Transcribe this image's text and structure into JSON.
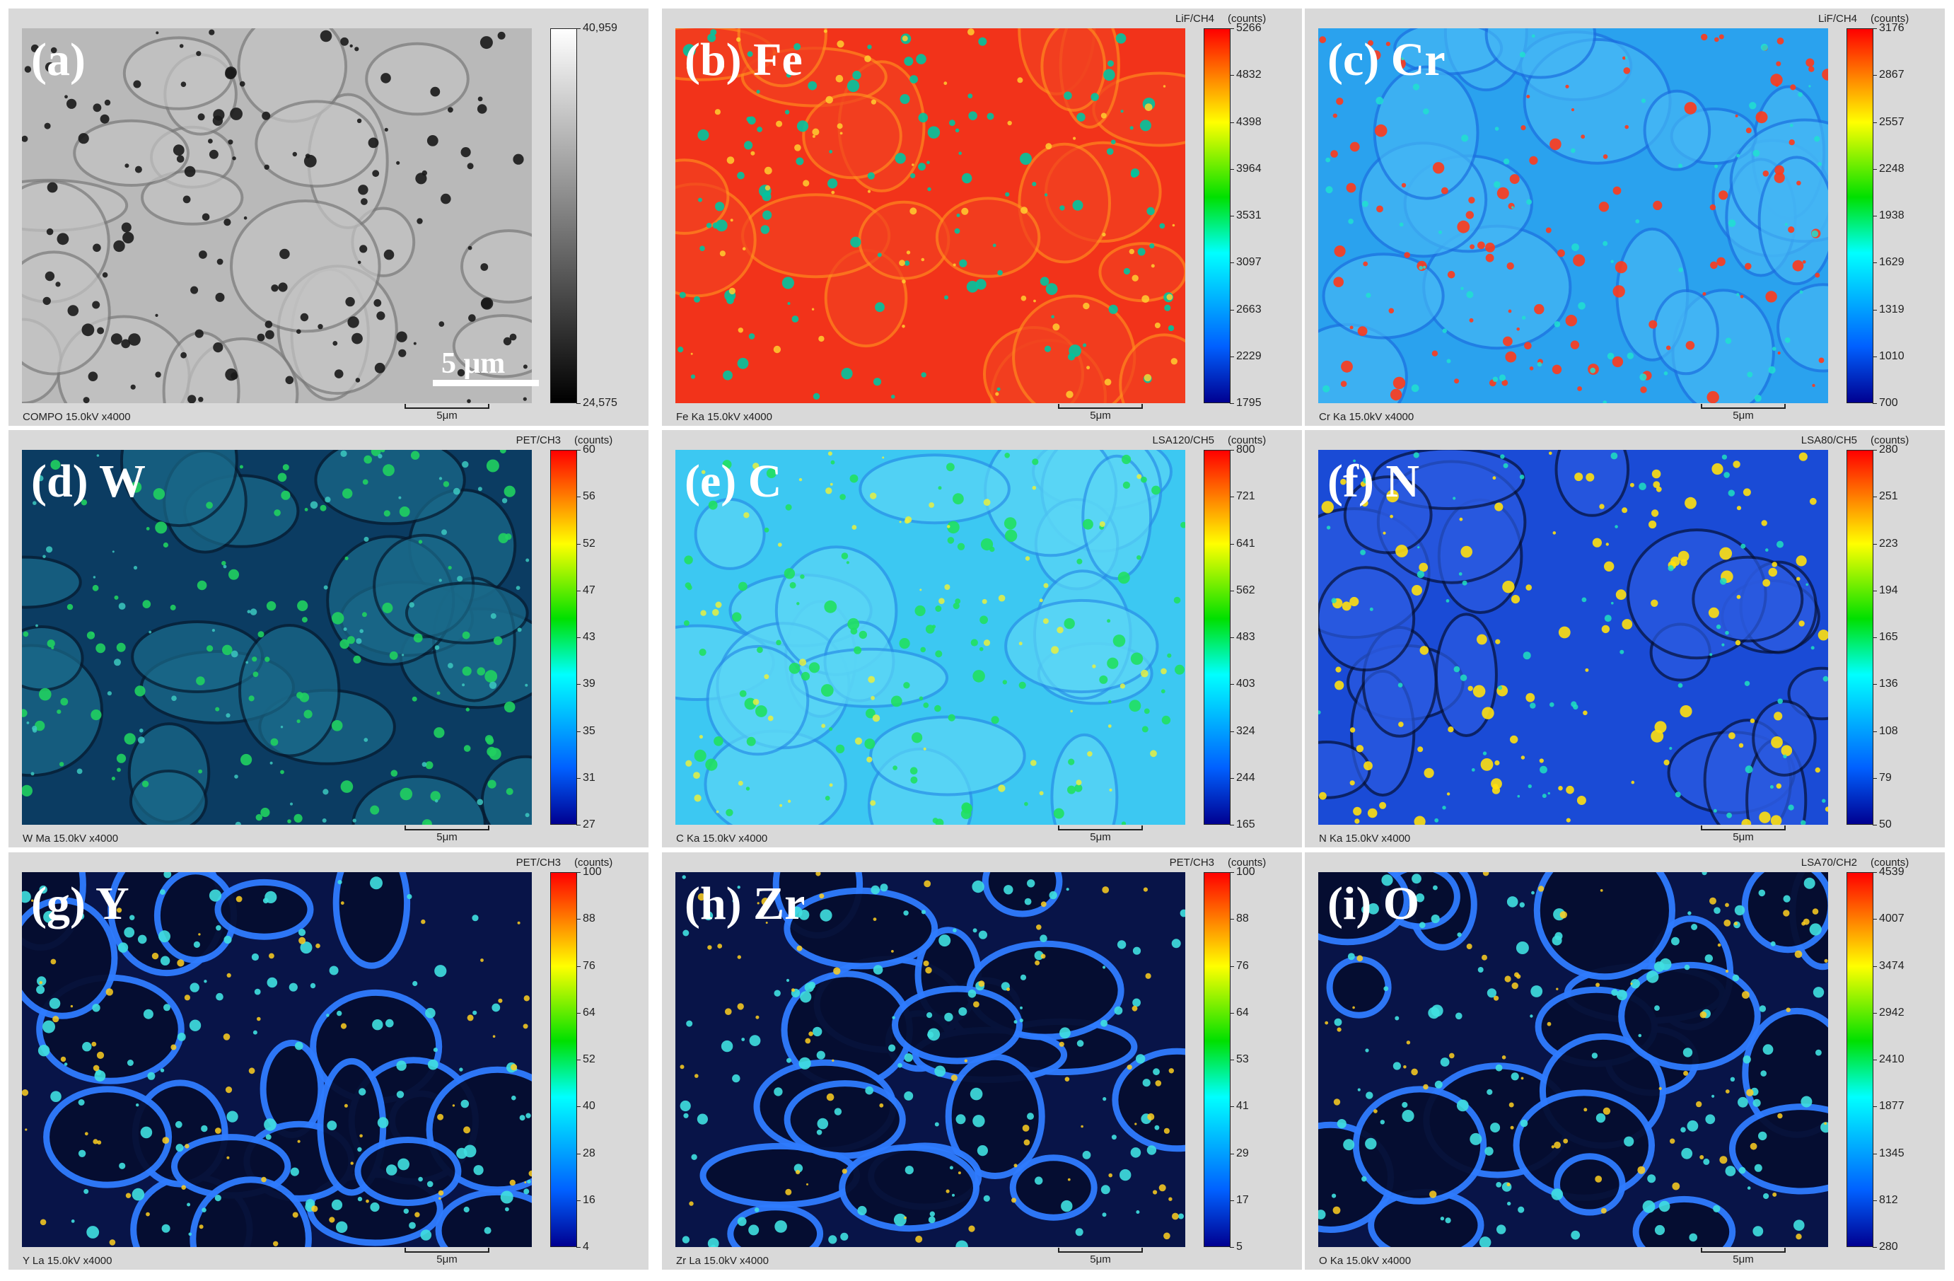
{
  "panels": [
    {
      "id": "a",
      "label": "(a)",
      "footer": "COMPO 15.0kV x4000",
      "channel": "",
      "units": "",
      "ticks": [
        "40,959",
        "24,575"
      ],
      "scale": "5μm",
      "scale_overlay": "5 μm",
      "cmap": "gray",
      "seed": 11
    },
    {
      "id": "b",
      "label": "(b) Fe",
      "footer": "Fe Ka 15.0kV x4000",
      "channel": "LiF/CH4",
      "units": "(counts)",
      "ticks": [
        "5266",
        "4832",
        "4398",
        "3964",
        "3531",
        "3097",
        "2663",
        "2229",
        "1795"
      ],
      "scale": "5μm",
      "cmap": "fe",
      "seed": 22
    },
    {
      "id": "c",
      "label": "(c) Cr",
      "footer": "Cr Ka 15.0kV x4000",
      "channel": "LiF/CH4",
      "units": "(counts)",
      "ticks": [
        "3176",
        "2867",
        "2557",
        "2248",
        "1938",
        "1629",
        "1319",
        "1010",
        "700"
      ],
      "scale": "5μm",
      "cmap": "cr",
      "seed": 33
    },
    {
      "id": "d",
      "label": "(d) W",
      "footer": "W Ma 15.0kV x4000",
      "channel": "PET/CH3",
      "units": "(counts)",
      "ticks": [
        "60",
        "56",
        "52",
        "47",
        "43",
        "39",
        "35",
        "31",
        "27"
      ],
      "scale": "5μm",
      "cmap": "w",
      "seed": 44
    },
    {
      "id": "e",
      "label": "(e) C",
      "footer": "C Ka 15.0kV x4000",
      "channel": "LSA120/CH5",
      "units": "(counts)",
      "ticks": [
        "800",
        "721",
        "641",
        "562",
        "483",
        "403",
        "324",
        "244",
        "165"
      ],
      "scale": "5μm",
      "cmap": "c",
      "seed": 55
    },
    {
      "id": "f",
      "label": "(f) N",
      "footer": "N Ka 15.0kV x4000",
      "channel": "LSA80/CH5",
      "units": "(counts)",
      "ticks": [
        "280",
        "251",
        "223",
        "194",
        "165",
        "136",
        "108",
        "79",
        "50"
      ],
      "scale": "5μm",
      "cmap": "n",
      "seed": 66
    },
    {
      "id": "g",
      "label": "(g) Y",
      "footer": "Y La 15.0kV x4000",
      "channel": "PET/CH3",
      "units": "(counts)",
      "ticks": [
        "100",
        "88",
        "76",
        "64",
        "52",
        "40",
        "28",
        "16",
        "4"
      ],
      "scale": "5μm",
      "cmap": "net",
      "seed": 77
    },
    {
      "id": "h",
      "label": "(h) Zr",
      "footer": "Zr La 15.0kV x4000",
      "channel": "PET/CH3",
      "units": "(counts)",
      "ticks": [
        "100",
        "88",
        "76",
        "64",
        "53",
        "41",
        "29",
        "17",
        "5"
      ],
      "scale": "5μm",
      "cmap": "net",
      "seed": 88
    },
    {
      "id": "i",
      "label": "(i) O",
      "footer": "O Ka 15.0kV x4000",
      "channel": "LSA70/CH2",
      "units": "(counts)",
      "ticks": [
        "4539",
        "4007",
        "3474",
        "2942",
        "2410",
        "1877",
        "1345",
        "812",
        "280"
      ],
      "scale": "5μm",
      "cmap": "net",
      "seed": 99
    }
  ]
}
